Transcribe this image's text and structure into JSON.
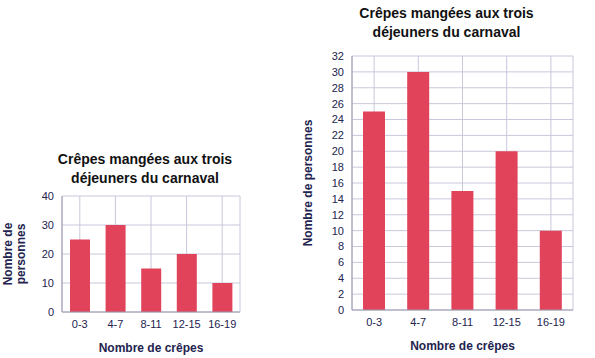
{
  "chart_data": [
    {
      "type": "bar",
      "title": "Crêpes mangées aux trois déjeuners du carnaval",
      "x_label": "Nombre de crêpes",
      "y_label": "Nombre de personnes",
      "categories": [
        "0-3",
        "4-7",
        "8-11",
        "12-15",
        "16-19"
      ],
      "values": [
        25,
        30,
        15,
        20,
        10
      ],
      "color": "#e0435a",
      "ylim": [
        0,
        40
      ],
      "yticks": [
        0,
        10,
        20,
        30,
        40
      ],
      "grid": true
    },
    {
      "type": "bar",
      "title": "Crêpes mangées aux trois déjeuners du carnaval",
      "x_label": "Nombre de crêpes",
      "y_label": "Nombre de personnes",
      "categories": [
        "0-3",
        "4-7",
        "8-11",
        "12-15",
        "16-19"
      ],
      "values": [
        25,
        30,
        15,
        20,
        10
      ],
      "color": "#e0435a",
      "ylim": [
        0,
        32
      ],
      "yticks": [
        0,
        2,
        4,
        6,
        8,
        10,
        12,
        14,
        16,
        18,
        20,
        22,
        24,
        26,
        28,
        30,
        32
      ],
      "grid": true
    }
  ]
}
